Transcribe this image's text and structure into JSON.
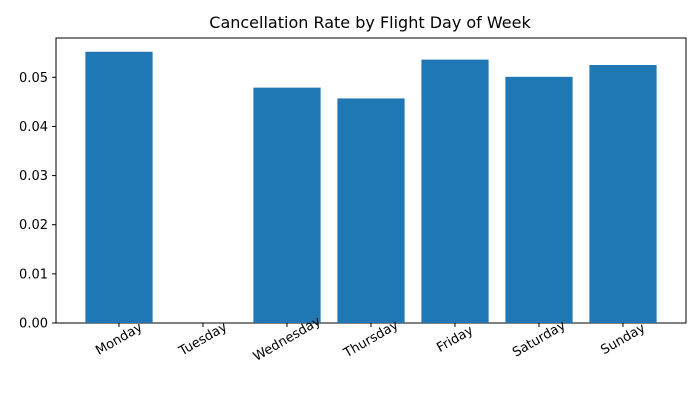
{
  "chart_data": {
    "type": "bar",
    "title": "Cancellation Rate by Flight Day of Week",
    "xlabel": "",
    "ylabel": "",
    "categories": [
      "Monday",
      "Tuesday",
      "Wednesday",
      "Thursday",
      "Friday",
      "Saturday",
      "Sunday"
    ],
    "values": [
      0.0552,
      0.0,
      0.0479,
      0.0457,
      0.0536,
      0.0501,
      0.0525
    ],
    "ylim": [
      0,
      0.058
    ],
    "yticks": [
      0.0,
      0.01,
      0.02,
      0.03,
      0.04,
      0.05
    ],
    "ytick_labels": [
      "0.00",
      "0.01",
      "0.02",
      "0.03",
      "0.04",
      "0.05"
    ],
    "grid": false,
    "bar_color": "#1f77b4"
  }
}
